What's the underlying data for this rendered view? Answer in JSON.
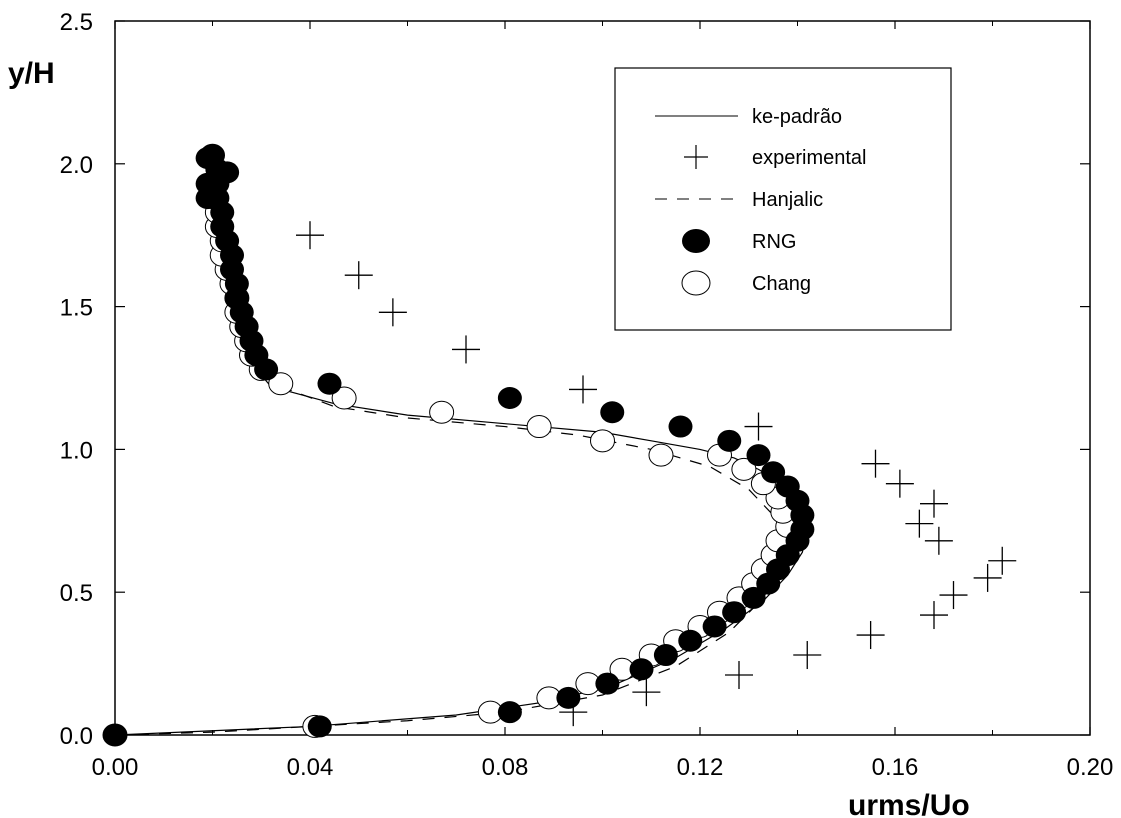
{
  "chart_data": {
    "type": "scatter",
    "xlabel": "urms/Uo",
    "ylabel": "y/H",
    "xlim": [
      0.0,
      0.2
    ],
    "ylim": [
      0.0,
      2.5
    ],
    "x_ticks": [
      "0.00",
      "0.04",
      "0.08",
      "0.12",
      "0.16",
      "0.20"
    ],
    "y_ticks": [
      "0.0",
      "0.5",
      "1.0",
      "1.5",
      "2.0",
      "2.5"
    ],
    "grid": false,
    "legend_position": "top-right",
    "series": [
      {
        "name": "ke-padrão",
        "style": "solid-line",
        "color": "#000000",
        "x": [
          0.0,
          0.04,
          0.07,
          0.09,
          0.103,
          0.115,
          0.125,
          0.133,
          0.138,
          0.141,
          0.142,
          0.141,
          0.139,
          0.136,
          0.132,
          0.127,
          0.12,
          0.11,
          0.1,
          0.08,
          0.06,
          0.045,
          0.032,
          0.028,
          0.026,
          0.025,
          0.024,
          0.023,
          0.022,
          0.021,
          0.02
        ],
        "y": [
          0.0,
          0.03,
          0.07,
          0.12,
          0.18,
          0.27,
          0.37,
          0.47,
          0.56,
          0.64,
          0.72,
          0.79,
          0.84,
          0.89,
          0.93,
          0.97,
          1.0,
          1.03,
          1.06,
          1.09,
          1.12,
          1.16,
          1.22,
          1.3,
          1.4,
          1.5,
          1.6,
          1.7,
          1.8,
          1.9,
          1.97
        ]
      },
      {
        "name": "experimental",
        "style": "plus",
        "color": "#000000",
        "x": [
          0.094,
          0.109,
          0.128,
          0.142,
          0.155,
          0.168,
          0.172,
          0.179,
          0.182,
          0.169,
          0.165,
          0.168,
          0.161,
          0.156,
          0.132,
          0.096,
          0.072,
          0.057,
          0.05,
          0.04
        ],
        "y": [
          0.08,
          0.15,
          0.21,
          0.28,
          0.35,
          0.42,
          0.49,
          0.55,
          0.61,
          0.68,
          0.74,
          0.81,
          0.88,
          0.95,
          1.08,
          1.21,
          1.35,
          1.48,
          1.61,
          1.75
        ]
      },
      {
        "name": "Hanjalic",
        "style": "dashed-line",
        "color": "#000000",
        "x": [
          0.0,
          0.02,
          0.04,
          0.06,
          0.08,
          0.1,
          0.115,
          0.126,
          0.133,
          0.136,
          0.137,
          0.135,
          0.13,
          0.122,
          0.11,
          0.095,
          0.08,
          0.06,
          0.045,
          0.034,
          0.029,
          0.026,
          0.024,
          0.023,
          0.022,
          0.021,
          0.02
        ],
        "y": [
          0.0,
          0.01,
          0.03,
          0.05,
          0.08,
          0.14,
          0.24,
          0.36,
          0.48,
          0.58,
          0.68,
          0.77,
          0.86,
          0.94,
          1.0,
          1.05,
          1.08,
          1.11,
          1.15,
          1.22,
          1.3,
          1.4,
          1.5,
          1.6,
          1.7,
          1.8,
          1.95
        ]
      },
      {
        "name": "RNG",
        "style": "filled-circle",
        "color": "#000000",
        "x": [
          0.0,
          0.042,
          0.081,
          0.093,
          0.101,
          0.108,
          0.113,
          0.118,
          0.123,
          0.127,
          0.131,
          0.134,
          0.136,
          0.138,
          0.14,
          0.141,
          0.141,
          0.14,
          0.138,
          0.135,
          0.132,
          0.126,
          0.116,
          0.102,
          0.081,
          0.044,
          0.031,
          0.029,
          0.028,
          0.027,
          0.026,
          0.025,
          0.025,
          0.024,
          0.024,
          0.023,
          0.022,
          0.022,
          0.021,
          0.021,
          0.021,
          0.02,
          0.02,
          0.023,
          0.019,
          0.019,
          0.019
        ],
        "y": [
          0.0,
          0.03,
          0.08,
          0.13,
          0.18,
          0.23,
          0.28,
          0.33,
          0.38,
          0.43,
          0.48,
          0.53,
          0.58,
          0.63,
          0.68,
          0.72,
          0.77,
          0.82,
          0.87,
          0.92,
          0.98,
          1.03,
          1.08,
          1.13,
          1.18,
          1.23,
          1.28,
          1.33,
          1.38,
          1.43,
          1.48,
          1.53,
          1.58,
          1.63,
          1.68,
          1.73,
          1.78,
          1.83,
          1.88,
          1.93,
          1.98,
          2.03,
          1.88,
          1.97,
          2.02,
          1.93,
          1.88
        ]
      },
      {
        "name": "Chang",
        "style": "open-circle",
        "color": "#000000",
        "x": [
          0.0,
          0.041,
          0.077,
          0.089,
          0.097,
          0.104,
          0.11,
          0.115,
          0.12,
          0.124,
          0.128,
          0.131,
          0.133,
          0.135,
          0.136,
          0.138,
          0.137,
          0.136,
          0.133,
          0.129,
          0.124,
          0.112,
          0.1,
          0.087,
          0.067,
          0.047,
          0.034,
          0.03,
          0.028,
          0.027,
          0.026,
          0.025,
          0.025,
          0.024,
          0.023,
          0.022,
          0.022,
          0.021,
          0.021,
          0.02,
          0.02
        ],
        "y": [
          0.0,
          0.03,
          0.08,
          0.13,
          0.18,
          0.23,
          0.28,
          0.33,
          0.38,
          0.43,
          0.48,
          0.53,
          0.58,
          0.63,
          0.68,
          0.73,
          0.78,
          0.83,
          0.88,
          0.93,
          0.98,
          0.98,
          1.03,
          1.08,
          1.13,
          1.18,
          1.23,
          1.28,
          1.33,
          1.38,
          1.43,
          1.48,
          1.53,
          1.58,
          1.63,
          1.68,
          1.73,
          1.78,
          1.83,
          1.93,
          2.03
        ]
      }
    ]
  }
}
